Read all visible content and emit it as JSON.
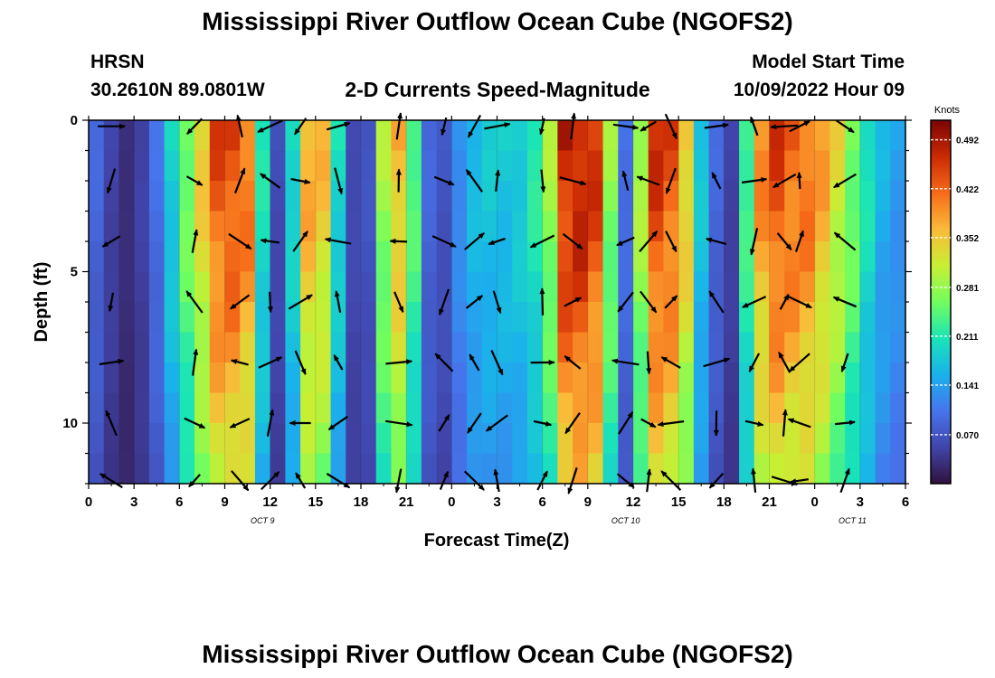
{
  "title": "Mississippi River Outflow Ocean Cube (NGOFS2)",
  "title_repeat": "Mississippi River Outflow Ocean Cube (NGOFS2)",
  "station": "HRSN",
  "coords": "30.2610N  89.0801W",
  "subtitle": "2-D Currents Speed-Magnitude",
  "model_start_label": "Model Start Time",
  "model_start_value": "10/09/2022 Hour 09",
  "chart_data": {
    "type": "heatmap",
    "xlabel": "Forecast Time(Z)",
    "ylabel": "Depth (ft)",
    "x_tick_labels": [
      "0",
      "3",
      "6",
      "9",
      "12",
      "15",
      "18",
      "21",
      "0",
      "3",
      "6",
      "9",
      "12",
      "15",
      "18",
      "21",
      "0",
      "3",
      "6"
    ],
    "x_range_hours": [
      0,
      54
    ],
    "date_labels": [
      {
        "text": "OCT 9",
        "hour": 11.5
      },
      {
        "text": "OCT 10",
        "hour": 35.5
      },
      {
        "text": "OCT 11",
        "hour": 50.5
      }
    ],
    "y_ticks": [
      0,
      5,
      10
    ],
    "ylim": [
      0,
      12
    ],
    "colorbar_label": "Knots",
    "colorbar_ticks": [
      0.492,
      0.422,
      0.352,
      0.281,
      0.211,
      0.141,
      0.07
    ],
    "colorbar_range": [
      0.0,
      0.52
    ],
    "speed_by_hour": [
      0.09,
      0.05,
      0.03,
      0.05,
      0.1,
      0.19,
      0.27,
      0.35,
      0.44,
      0.45,
      0.42,
      0.21,
      0.06,
      0.2,
      0.38,
      0.36,
      0.2,
      0.06,
      0.07,
      0.29,
      0.37,
      0.25,
      0.09,
      0.07,
      0.13,
      0.17,
      0.18,
      0.18,
      0.19,
      0.22,
      0.29,
      0.48,
      0.49,
      0.46,
      0.28,
      0.1,
      0.3,
      0.46,
      0.44,
      0.36,
      0.18,
      0.09,
      0.05,
      0.24,
      0.4,
      0.45,
      0.43,
      0.42,
      0.38,
      0.33,
      0.27,
      0.21,
      0.16,
      0.14
    ],
    "arrow_columns_hours": [
      1.5,
      7,
      10,
      12,
      14,
      16.5,
      20.5,
      23.5,
      25.5,
      27,
      30,
      32,
      35.5,
      37,
      38.5,
      41.5,
      44,
      46,
      47,
      50
    ],
    "arrow_row_depths_ft": [
      0.2,
      2.0,
      4.0,
      6.0,
      8.0,
      10.0,
      11.9
    ]
  }
}
